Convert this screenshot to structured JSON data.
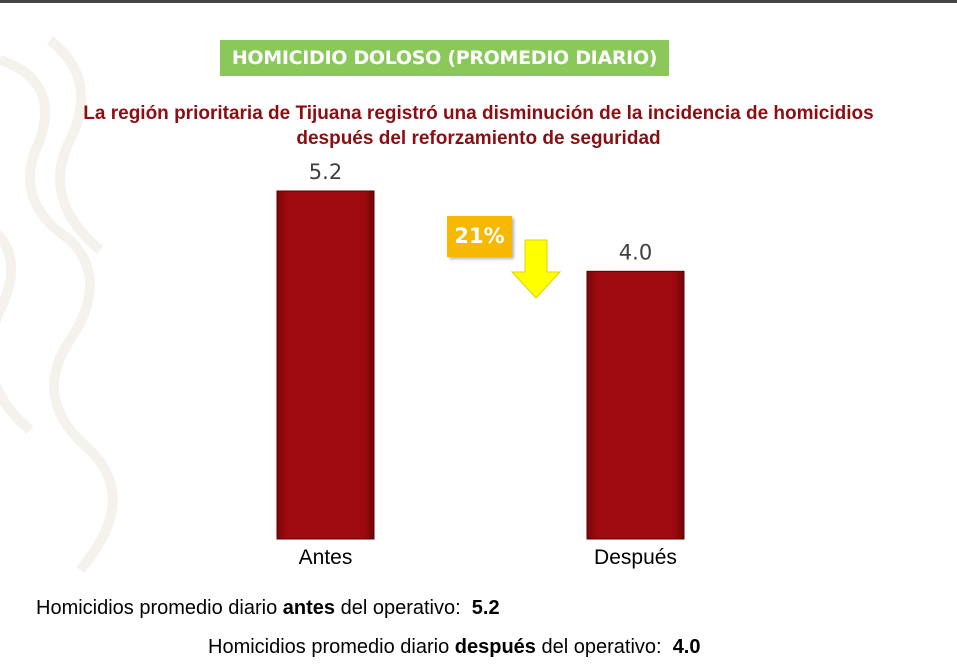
{
  "title": "HOMICIDIO DOLOSO (PROMEDIO DIARIO)",
  "subtitle_line1": "La región prioritaria de Tijuana registró una disminución de la incidencia de homicidios",
  "subtitle_line2": "después del reforzamiento de seguridad",
  "change_badge": "21%",
  "chart_data": {
    "type": "bar",
    "categories": [
      "Antes",
      "Después"
    ],
    "values": [
      5.2,
      4.0
    ],
    "value_labels": [
      "5.2",
      "4.0"
    ],
    "ylim": [
      0,
      5.2
    ],
    "bar_color": "#9b0a0e",
    "annotation": "21%",
    "annotation_direction": "down"
  },
  "footer": {
    "line1": {
      "prefix": "Homicidios promedio diario ",
      "bold": "antes",
      "suffix": " del operativo:  ",
      "value": "5.2"
    },
    "line2": {
      "prefix": "Homicidios promedio diario ",
      "bold": "después",
      "suffix": " del operativo:  ",
      "value": "4.0"
    }
  }
}
